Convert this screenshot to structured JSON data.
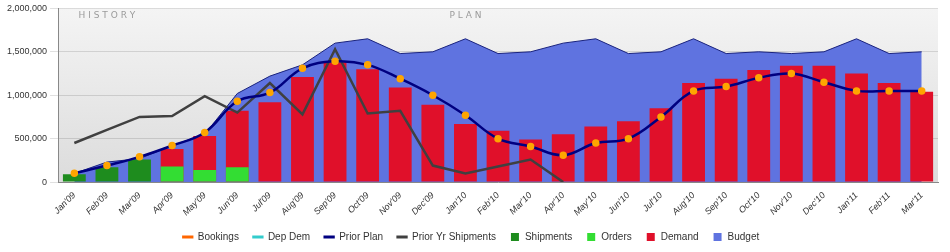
{
  "chart_data": {
    "type": "bar",
    "annotations": [
      "HISTORY",
      "PLAN"
    ],
    "categories": [
      "Jan'09",
      "Feb'09",
      "Mar'09",
      "Apr'09",
      "May'09",
      "Jun'09",
      "Jul'09",
      "Aug'09",
      "Sep'09",
      "Oct'09",
      "Nov'09",
      "Dec'09",
      "Jan'10",
      "Feb'10",
      "Mar'10",
      "Apr'10",
      "May'10",
      "Jun'10",
      "Jul'10",
      "Aug'10",
      "Sep'10",
      "Oct'10",
      "Nov'10",
      "Dec'10",
      "Jan'11",
      "Feb'11",
      "Mar'11"
    ],
    "ylim": [
      0,
      2000000
    ],
    "yticks": [
      0,
      {
        "value": 500000,
        "label": "500,000"
      },
      {
        "value": 1000000,
        "label": "1,000,000"
      },
      {
        "value": 1500000,
        "label": "1,500,000"
      },
      {
        "value": 2000000,
        "label": "2,000,000"
      }
    ],
    "grid": true,
    "legend": "bottom",
    "series": [
      {
        "name": "Bookings",
        "type": "line",
        "color": "#ff6600",
        "values": [
          null,
          null,
          null,
          null,
          null,
          null,
          null,
          null,
          null,
          null,
          null,
          null,
          null,
          null,
          null,
          null,
          null,
          null,
          null,
          null,
          null,
          null,
          null,
          null,
          null,
          null,
          null
        ]
      },
      {
        "name": "Dep Dem",
        "type": "line",
        "color": "#33cccc",
        "values": [
          null,
          null,
          null,
          null,
          null,
          null,
          null,
          null,
          null,
          null,
          null,
          null,
          null,
          null,
          null,
          null,
          null,
          null,
          null,
          null,
          null,
          null,
          null,
          null,
          null,
          null,
          null
        ]
      },
      {
        "name": "Prior Plan",
        "type": "line",
        "color": "#000080",
        "marker": "circle",
        "values": [
          100000,
          190000,
          290000,
          420000,
          570000,
          930000,
          1030000,
          1310000,
          1390000,
          1350000,
          1190000,
          1000000,
          770000,
          500000,
          410000,
          310000,
          450000,
          500000,
          750000,
          1050000,
          1100000,
          1200000,
          1250000,
          1150000,
          1050000,
          1050000,
          1050000
        ]
      },
      {
        "name": "Prior Yr Shipments",
        "type": "line",
        "color": "#404040",
        "values": [
          450000,
          600000,
          750000,
          760000,
          990000,
          800000,
          1140000,
          780000,
          1530000,
          790000,
          820000,
          190000,
          100000,
          180000,
          260000,
          0,
          null,
          null,
          null,
          null,
          null,
          null,
          null,
          null,
          null,
          null,
          null
        ]
      },
      {
        "name": "Shipments",
        "type": "bar",
        "color": "#1e8c1e",
        "values": [
          90000,
          170000,
          260000,
          null,
          null,
          null,
          null,
          null,
          null,
          null,
          null,
          null,
          null,
          null,
          null,
          null,
          null,
          null,
          null,
          null,
          null,
          null,
          null,
          null,
          null,
          null,
          null
        ]
      },
      {
        "name": "Orders",
        "type": "bar",
        "color": "#33dd33",
        "values": [
          null,
          null,
          null,
          180000,
          140000,
          170000,
          null,
          null,
          null,
          null,
          null,
          null,
          null,
          null,
          null,
          null,
          null,
          null,
          null,
          null,
          null,
          null,
          null,
          null,
          null,
          null,
          null
        ]
      },
      {
        "name": "Demand",
        "type": "bar",
        "color": "#e0102a",
        "values": [
          null,
          null,
          null,
          380000,
          530000,
          820000,
          920000,
          1210000,
          1380000,
          1300000,
          1090000,
          890000,
          670000,
          590000,
          490000,
          550000,
          640000,
          700000,
          850000,
          1140000,
          1190000,
          1290000,
          1340000,
          1340000,
          1250000,
          1140000,
          1040000
        ]
      },
      {
        "name": "Budget",
        "type": "area",
        "color": "#5f73e0",
        "values": [
          100000,
          230000,
          270000,
          420000,
          550000,
          1020000,
          1220000,
          1350000,
          1600000,
          1650000,
          1480000,
          1500000,
          1650000,
          1480000,
          1500000,
          1600000,
          1650000,
          1480000,
          1500000,
          1650000,
          1480000,
          1500000,
          1480000,
          1500000,
          1650000,
          1480000,
          1500000
        ]
      }
    ]
  }
}
